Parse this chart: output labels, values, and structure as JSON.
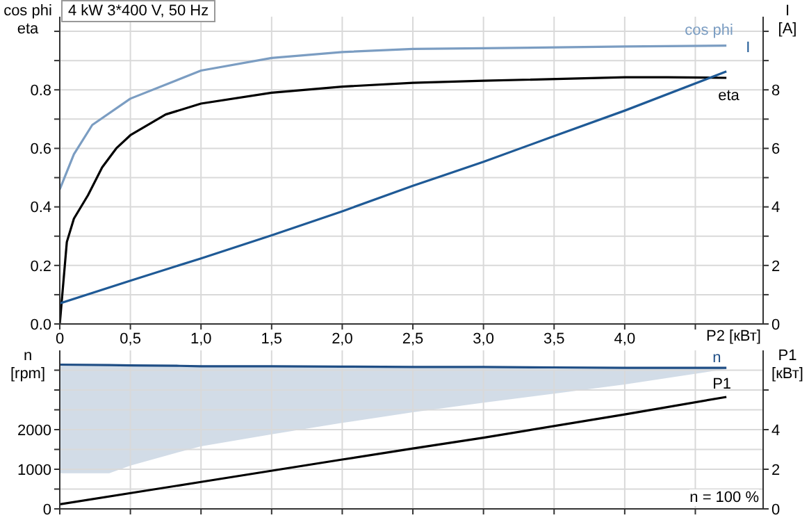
{
  "chart_data": [
    {
      "type": "line",
      "title": "4 kW   3*400 V, 50 Hz",
      "xlabel": "P2 [кВт]",
      "ylabel": "cos phi\neta",
      "y2label": "I\n[A]",
      "grid": true,
      "marker": "none",
      "xlim": [
        0,
        4.98
      ],
      "xticks": [
        0,
        {
          "value": 0.5,
          "label": "0,5"
        },
        {
          "value": 1,
          "label": "1,0"
        },
        {
          "value": 1.5,
          "label": "1,5"
        },
        {
          "value": 2,
          "label": "2,0"
        },
        {
          "value": 2.5,
          "label": "2,5"
        },
        {
          "value": 3,
          "label": "3,0"
        },
        {
          "value": 3.5,
          "label": "3,5"
        },
        {
          "value": 4,
          "label": "4,0"
        },
        {
          "value": 4.5,
          "label": null
        }
      ],
      "ylim": [
        0,
        1.05
      ],
      "yticks": [
        {
          "value": 0,
          "label": "0.0"
        },
        {
          "value": 0.1,
          "label": null
        },
        0.2,
        {
          "value": 0.3,
          "label": null
        },
        0.4,
        {
          "value": 0.5,
          "label": null
        },
        0.6,
        {
          "value": 0.7,
          "label": null
        },
        0.8,
        {
          "value": 0.9,
          "label": null
        },
        {
          "value": 1,
          "label": null
        }
      ],
      "y2lim": [
        0,
        10.5
      ],
      "y2ticks": [
        0,
        {
          "value": 1,
          "label": null
        },
        2,
        {
          "value": 3,
          "label": null
        },
        4,
        {
          "value": 5,
          "label": null
        },
        6,
        {
          "value": 7,
          "label": null
        },
        8,
        {
          "value": 9,
          "label": null
        },
        {
          "value": 10,
          "label": null
        }
      ],
      "series": [
        {
          "name": "cos phi",
          "color": "#7b9dc2",
          "x": [
            0,
            0.1,
            0.23,
            0.5,
            1,
            1.5,
            2,
            2.5,
            3,
            4,
            4.72
          ],
          "values": [
            0.46,
            0.58,
            0.68,
            0.77,
            0.866,
            0.909,
            0.929,
            0.94,
            0.942,
            0.948,
            0.951
          ]
        },
        {
          "name": "eta",
          "color": "#000000",
          "x": [
            0,
            0.05,
            0.1,
            0.2,
            0.3,
            0.4,
            0.5,
            0.75,
            1,
            1.5,
            2,
            2.5,
            3,
            4,
            4.3,
            4.72
          ],
          "values": [
            0,
            0.28,
            0.36,
            0.44,
            0.535,
            0.6,
            0.645,
            0.716,
            0.753,
            0.79,
            0.811,
            0.824,
            0.831,
            0.843,
            0.843,
            0.841
          ]
        },
        {
          "name": "I",
          "color": "#1f5a96",
          "axis": "y2",
          "x": [
            0,
            0.5,
            1,
            1.5,
            2,
            2.5,
            3,
            3.5,
            4,
            4.72
          ],
          "values": [
            0.7,
            1.48,
            2.24,
            3.03,
            3.85,
            4.72,
            5.54,
            6.42,
            7.29,
            8.63
          ]
        }
      ]
    },
    {
      "type": "line",
      "ylabel": "n\n[rpm]",
      "y2label": "P1\n[кВт]",
      "annotations": [
        "n = 100 %"
      ],
      "grid": true,
      "marker": "none",
      "tick_labels": "y",
      "xlim": [
        0,
        4.98
      ],
      "xticks": [
        0,
        0.5,
        1,
        1.5,
        2,
        2.5,
        3,
        3.5,
        4,
        4.5
      ],
      "ylim": [
        0,
        4000
      ],
      "yticks": [
        0,
        {
          "value": 500,
          "label": null
        },
        1000,
        {
          "value": 1500,
          "label": null
        },
        2000,
        {
          "value": 2500,
          "label": null
        },
        {
          "value": 3000,
          "label": null
        },
        {
          "value": 3500,
          "label": null
        }
      ],
      "y2lim": [
        0,
        8
      ],
      "y2ticks": [
        0,
        2,
        4,
        {
          "value": 6,
          "label": null
        }
      ],
      "series": [
        {
          "name": "n",
          "color": "#1f4e85",
          "x": [
            0,
            0.35,
            0.5,
            0.85,
            1,
            1.5,
            2,
            2.5,
            3,
            3.5,
            4,
            4.72
          ],
          "values": [
            3640,
            3630,
            3620,
            3610,
            3600,
            3600,
            3590,
            3580,
            3580,
            3570,
            3560,
            3560
          ],
          "lower": [
            900,
            900,
            1090,
            1440,
            1580,
            1880,
            2170,
            2440,
            2680,
            2910,
            3140,
            3530
          ],
          "upper": [
            3640,
            3630,
            3620,
            3610,
            3600,
            3600,
            3590,
            3580,
            3580,
            3570,
            3560,
            3560
          ]
        },
        {
          "name": "P1",
          "color": "#000000",
          "axis": "y2",
          "x": [
            0,
            1,
            2,
            2.5,
            3,
            4,
            4.72
          ],
          "values": [
            0.23,
            1.36,
            2.49,
            3.05,
            3.59,
            4.77,
            5.65
          ]
        }
      ]
    }
  ]
}
